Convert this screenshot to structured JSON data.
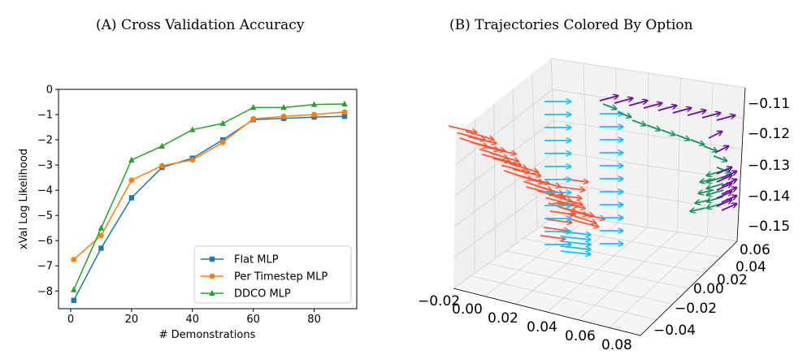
{
  "titles": {
    "a": "(A) Cross Validation Accuracy",
    "b": "(B) Trajectories Colored By Option"
  },
  "chart_data": [
    {
      "type": "line",
      "title": "(A) Cross Validation Accuracy",
      "xlabel": "# Demonstrations",
      "ylabel": "xVal Log Likelihood",
      "xlim": [
        -4,
        94
      ],
      "ylim": [
        -8.7,
        0
      ],
      "xticks": [
        0,
        20,
        40,
        60,
        80
      ],
      "yticks": [
        0,
        -1,
        -2,
        -3,
        -4,
        -5,
        -6,
        -7,
        -8
      ],
      "grid": false,
      "legend_position": "lower-right",
      "x": [
        1,
        10,
        20,
        30,
        40,
        50,
        60,
        70,
        80,
        90
      ],
      "series": [
        {
          "name": "Flat MLP",
          "color": "#1f77b4",
          "marker": "square",
          "values": [
            -8.37,
            -6.3,
            -4.3,
            -3.1,
            -2.73,
            -2.0,
            -1.2,
            -1.15,
            -1.1,
            -1.07
          ]
        },
        {
          "name": "Per Timestep MLP",
          "color": "#ff7f0e",
          "marker": "circle",
          "values": [
            -6.75,
            -5.8,
            -3.6,
            -3.03,
            -2.8,
            -2.1,
            -1.17,
            -1.07,
            -1.0,
            -0.9
          ]
        },
        {
          "name": "DDCO MLP",
          "color": "#2ca02c",
          "marker": "triangle",
          "values": [
            -7.95,
            -5.5,
            -2.8,
            -2.25,
            -1.6,
            -1.35,
            -0.72,
            -0.72,
            -0.6,
            -0.58
          ]
        }
      ]
    },
    {
      "type": "scatter",
      "subtype": "3d-quiver",
      "title": "(B) Trajectories Colored By Option",
      "x_ticklabels": [
        "−0.02",
        "0.00",
        "0.02",
        "0.04",
        "0.06",
        "0.08"
      ],
      "y_ticklabels": [
        "−0.04",
        "−0.02",
        "0.00",
        "0.02",
        "0.04",
        "0.06"
      ],
      "z_ticklabels": [
        "−0.11",
        "−0.12",
        "−0.13",
        "−0.14",
        "−0.15"
      ],
      "options": [
        {
          "color": "#fe5a3a"
        },
        {
          "color": "#17bfff"
        },
        {
          "color": "#17945e"
        },
        {
          "color": "#6a0d9c"
        }
      ]
    }
  ]
}
